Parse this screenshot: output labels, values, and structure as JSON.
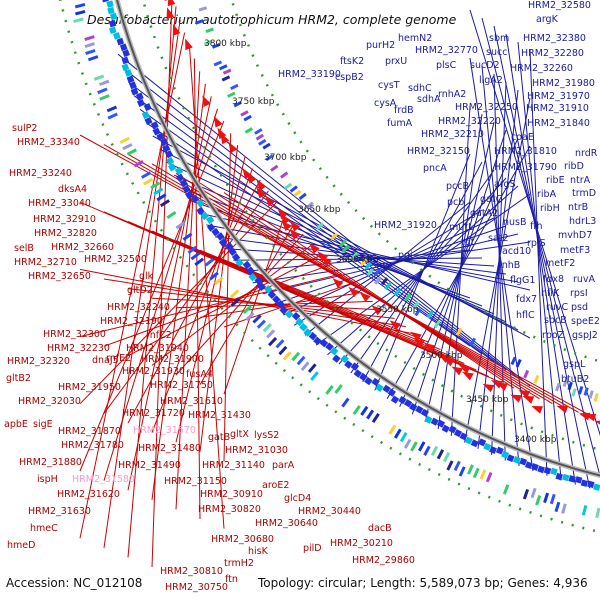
{
  "title": "Desulfobacterium autotrophicum HRM2, complete genome",
  "accession": "Accession: NC_012108",
  "topology": "Topology: circular; Length: 5,589,073 bp; Genes: 4,936",
  "colors": {
    "forward": "#1a1aa6",
    "reverse": "#cc0000",
    "pink": "#ff99cc",
    "backbone": "#888888",
    "dotted": "#2e9a2e"
  },
  "kbp_ticks": [
    "3800 kbp",
    "3750 kbp",
    "3700 kbp",
    "3650 kbp",
    "3600 kbp",
    "3550 kbp",
    "3500 kbp",
    "3450 kbp",
    "3400 kbp"
  ],
  "labels_blue": [
    {
      "t": "HRM2_32580"
    },
    {
      "t": "argK"
    },
    {
      "t": "hemN2"
    },
    {
      "t": "sbm"
    },
    {
      "t": "HRM2_32380"
    },
    {
      "t": "purH2"
    },
    {
      "t": "HRM2_32770"
    },
    {
      "t": "succ"
    },
    {
      "t": "ftsK2"
    },
    {
      "t": "prxU"
    },
    {
      "t": "plsC"
    },
    {
      "t": "sucD2"
    },
    {
      "t": "HRM2_32280"
    },
    {
      "t": "cspB2"
    },
    {
      "t": "HRM2_32260"
    },
    {
      "t": "HRM2_33190"
    },
    {
      "t": "ligA2"
    },
    {
      "t": "cysT"
    },
    {
      "t": "sdhC"
    },
    {
      "t": "HRM2_31980"
    },
    {
      "t": "rnhA2"
    },
    {
      "t": "HRM2_31970"
    },
    {
      "t": "cysA"
    },
    {
      "t": "sdhA"
    },
    {
      "t": "HRM2_32250"
    },
    {
      "t": "HRM2_31910"
    },
    {
      "t": "frdB"
    },
    {
      "t": "HRM2_32220"
    },
    {
      "t": "HRM2_31840"
    },
    {
      "t": "fumA"
    },
    {
      "t": "HRM2_32210"
    },
    {
      "t": "coaE"
    },
    {
      "t": "HRM2_32150"
    },
    {
      "t": "HRM2_31810"
    },
    {
      "t": "nrdR"
    },
    {
      "t": "pncA"
    },
    {
      "t": "HRM2_31790"
    },
    {
      "t": "ribD"
    },
    {
      "t": "ribE"
    },
    {
      "t": "ntrA"
    },
    {
      "t": "pccB"
    },
    {
      "t": "argS"
    },
    {
      "t": "ribA"
    },
    {
      "t": "trmD"
    },
    {
      "t": "pcb"
    },
    {
      "t": "gatC"
    },
    {
      "t": "ribH"
    },
    {
      "t": "ntrB"
    },
    {
      "t": "hdrL3"
    },
    {
      "t": "gatA2"
    },
    {
      "t": "nusB"
    },
    {
      "t": "mvhD7"
    },
    {
      "t": "HRM2_31920"
    },
    {
      "t": "mutL"
    },
    {
      "t": "ffh"
    },
    {
      "t": "tgt"
    },
    {
      "t": "sat2"
    },
    {
      "t": "rplS"
    },
    {
      "t": "metF3"
    },
    {
      "t": "acd10"
    },
    {
      "t": "metF2"
    },
    {
      "t": "pgi"
    },
    {
      "t": "rnhB"
    },
    {
      "t": "fdx8"
    },
    {
      "t": "ruvA"
    },
    {
      "t": "flgG1"
    },
    {
      "t": "hflK"
    },
    {
      "t": "rpsI"
    },
    {
      "t": "fdx7"
    },
    {
      "t": "ruvC"
    },
    {
      "t": "psd"
    },
    {
      "t": "hflC"
    },
    {
      "t": "sbcB"
    },
    {
      "t": "speE2"
    },
    {
      "t": "rpoZ"
    },
    {
      "t": "gspJ2"
    },
    {
      "t": "gspL"
    },
    {
      "t": "btuB2"
    }
  ],
  "labels_red": [
    {
      "t": "sulP2"
    },
    {
      "t": "HRM2_33340"
    },
    {
      "t": "HRM2_33240"
    },
    {
      "t": "dksA4"
    },
    {
      "t": "HRM2_33040"
    },
    {
      "t": "HRM2_32910"
    },
    {
      "t": "HRM2_32820"
    },
    {
      "t": "HRM2_32660"
    },
    {
      "t": "selB"
    },
    {
      "t": "HRM2_32710"
    },
    {
      "t": "HRM2_32500"
    },
    {
      "t": "HRM2_32650"
    },
    {
      "t": "glk"
    },
    {
      "t": "gltD2"
    },
    {
      "t": "HRM2_32240"
    },
    {
      "t": "HRM2_32190"
    },
    {
      "t": "HRM2_32300"
    },
    {
      "t": "rnfC2"
    },
    {
      "t": "HRM2_32230"
    },
    {
      "t": "HRM2_31940"
    },
    {
      "t": "HRM2_32320"
    },
    {
      "t": "dnaJ5"
    },
    {
      "t": "rnfE2"
    },
    {
      "t": "HRM2_31900"
    },
    {
      "t": "gltB2"
    },
    {
      "t": "HRM2_31930"
    },
    {
      "t": "fusA4"
    },
    {
      "t": "HRM2_31950"
    },
    {
      "t": "HRM2_32030"
    },
    {
      "t": "HRM2_31750"
    },
    {
      "t": "HRM2_31610"
    },
    {
      "t": "apbE"
    },
    {
      "t": "sigE"
    },
    {
      "t": "HRM2_31720"
    },
    {
      "t": "HRM2_31430"
    },
    {
      "t": "HRM2_31870"
    },
    {
      "t": "gatB"
    },
    {
      "t": "gltX"
    },
    {
      "t": "lysS2"
    },
    {
      "t": "HRM2_31780"
    },
    {
      "t": "HRM2_31480"
    },
    {
      "t": "HRM2_31030"
    },
    {
      "t": "HRM2_31880"
    },
    {
      "t": "HRM2_31490"
    },
    {
      "t": "HRM2_31140"
    },
    {
      "t": "parA"
    },
    {
      "t": "ispH"
    },
    {
      "t": "HRM2_31150"
    },
    {
      "t": "aroE2"
    },
    {
      "t": "HRM2_31620"
    },
    {
      "t": "HRM2_30910"
    },
    {
      "t": "glcD4"
    },
    {
      "t": "HRM2_31630"
    },
    {
      "t": "HRM2_30820"
    },
    {
      "t": "HRM2_30440"
    },
    {
      "t": "hmeC"
    },
    {
      "t": "HRM2_30640"
    },
    {
      "t": "dacB"
    },
    {
      "t": "hmeD"
    },
    {
      "t": "HRM2_30680"
    },
    {
      "t": "pilD"
    },
    {
      "t": "HRM2_30210"
    },
    {
      "t": "hisK"
    },
    {
      "t": "HRM2_29860"
    },
    {
      "t": "trmH2"
    },
    {
      "t": "HRM2_30810"
    },
    {
      "t": "HRM2_30750"
    },
    {
      "t": "ftn"
    }
  ],
  "labels_pink": [
    {
      "t": "HRM2_31570"
    },
    {
      "t": "HRM2_31580"
    }
  ]
}
